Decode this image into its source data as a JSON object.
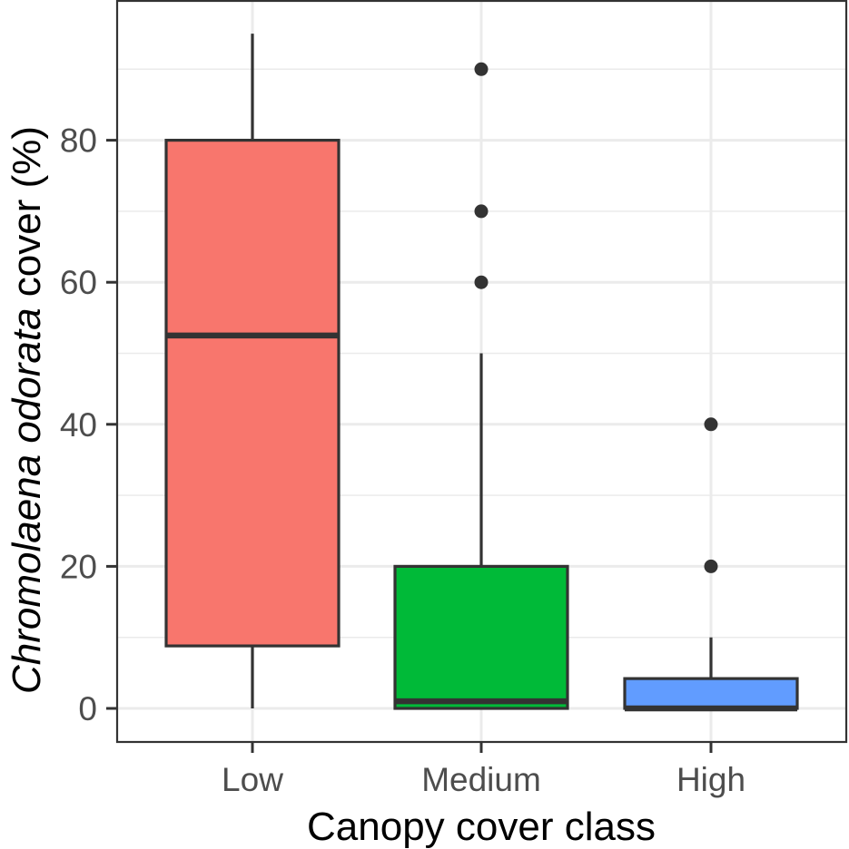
{
  "chart_data": {
    "type": "boxplot",
    "title": "",
    "xlabel": "Canopy cover class",
    "ylabel_italic": "Chromolaena odorata",
    "ylabel_rest": " cover (%)",
    "ylabel": "Chromolaena odorata cover (%)",
    "categories": [
      "Low",
      "Medium",
      "High"
    ],
    "yticks": [
      0,
      20,
      40,
      60,
      80
    ],
    "ylim": [
      -4.5,
      99.5
    ],
    "grid": true,
    "legend": "none",
    "series": [
      {
        "name": "Low",
        "color": "#F8766D",
        "whisker_low": 0,
        "q1": 8.8,
        "median": 52.5,
        "q3": 80,
        "whisker_high": 95,
        "outliers": []
      },
      {
        "name": "Medium",
        "color": "#00BA38",
        "whisker_low": 0,
        "q1": 0,
        "median": 1,
        "q3": 20,
        "whisker_high": 50,
        "outliers": [
          60,
          70,
          90
        ]
      },
      {
        "name": "High",
        "color": "#619CFF",
        "whisker_low": 0,
        "q1": 0,
        "median": 0,
        "q3": 4.2,
        "whisker_high": 10,
        "outliers": [
          20,
          40
        ]
      }
    ]
  }
}
